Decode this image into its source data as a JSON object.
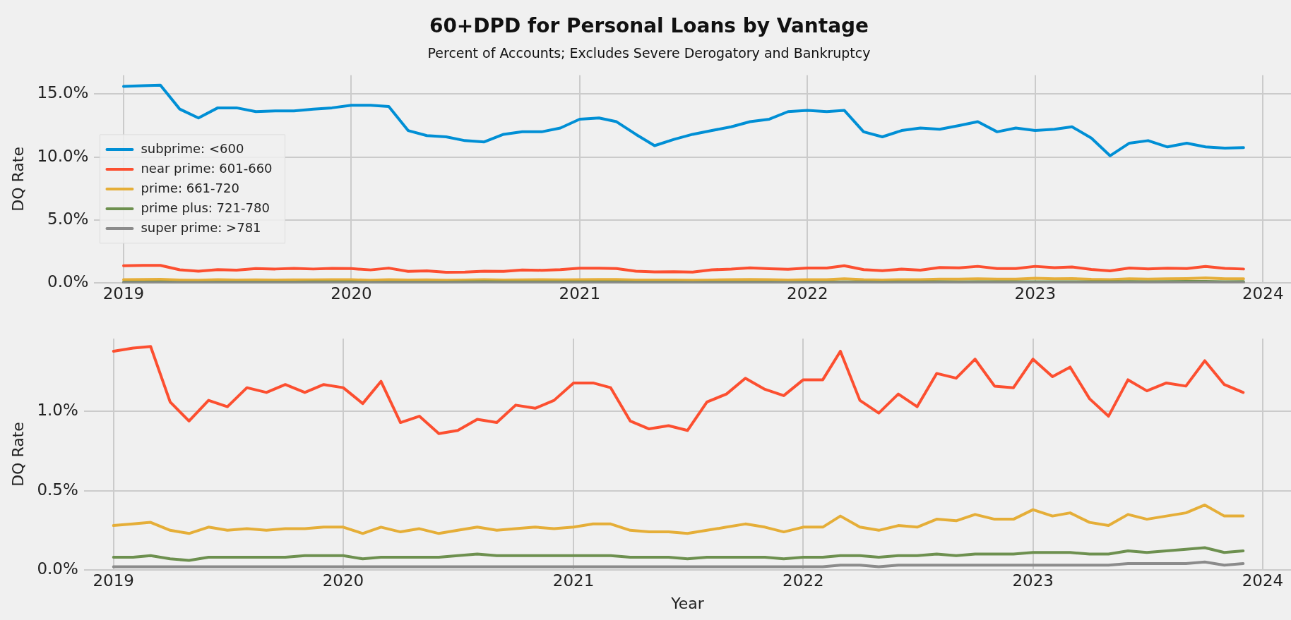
{
  "chart_data": [
    {
      "type": "line",
      "title": "60+DPD for Personal Loans by Vantage",
      "subtitle": "Percent of Accounts; Excludes Severe Derogatory and Bankruptcy",
      "ylabel": "DQ Rate",
      "x": [
        "2019-01",
        "2019-02",
        "2019-03",
        "2019-04",
        "2019-05",
        "2019-06",
        "2019-07",
        "2019-08",
        "2019-09",
        "2019-10",
        "2019-11",
        "2019-12",
        "2020-01",
        "2020-02",
        "2020-03",
        "2020-04",
        "2020-05",
        "2020-06",
        "2020-07",
        "2020-08",
        "2020-09",
        "2020-10",
        "2020-11",
        "2020-12",
        "2021-01",
        "2021-02",
        "2021-03",
        "2021-04",
        "2021-05",
        "2021-06",
        "2021-07",
        "2021-08",
        "2021-09",
        "2021-10",
        "2021-11",
        "2021-12",
        "2022-01",
        "2022-02",
        "2022-03",
        "2022-04",
        "2022-05",
        "2022-06",
        "2022-07",
        "2022-08",
        "2022-09",
        "2022-10",
        "2022-11",
        "2022-12",
        "2023-01",
        "2023-02",
        "2023-03",
        "2023-04",
        "2023-05",
        "2023-06",
        "2023-07",
        "2023-08",
        "2023-09",
        "2023-10",
        "2023-11",
        "2023-12"
      ],
      "series": [
        {
          "name": "subprime: <600",
          "color": "#008fd5",
          "values": [
            15.6,
            15.65,
            15.7,
            13.8,
            13.1,
            13.9,
            13.9,
            13.6,
            13.65,
            13.65,
            13.8,
            13.9,
            14.1,
            14.1,
            14.0,
            12.1,
            11.7,
            11.6,
            11.3,
            11.2,
            11.8,
            12.0,
            12.0,
            12.3,
            13.0,
            13.1,
            12.8,
            11.8,
            10.9,
            11.4,
            11.8,
            12.1,
            12.4,
            12.8,
            13.0,
            13.6,
            13.7,
            13.6,
            13.7,
            12.0,
            11.6,
            12.1,
            12.3,
            12.2,
            12.5,
            12.8,
            12.0,
            12.3,
            12.1,
            12.2,
            12.4,
            11.5,
            10.1,
            11.1,
            11.3,
            10.8,
            11.1,
            10.8,
            10.7,
            10.75
          ]
        },
        {
          "name": "near prime: 601-660",
          "color": "#fc4f30",
          "values": [
            1.38,
            1.4,
            1.41,
            1.06,
            0.94,
            1.07,
            1.03,
            1.15,
            1.12,
            1.17,
            1.12,
            1.17,
            1.15,
            1.05,
            1.19,
            0.93,
            0.97,
            0.86,
            0.88,
            0.95,
            0.93,
            1.04,
            1.02,
            1.07,
            1.18,
            1.18,
            1.15,
            0.94,
            0.89,
            0.91,
            0.88,
            1.06,
            1.11,
            1.21,
            1.14,
            1.1,
            1.2,
            1.2,
            1.38,
            1.07,
            0.99,
            1.11,
            1.03,
            1.24,
            1.21,
            1.33,
            1.16,
            1.15,
            1.33,
            1.22,
            1.28,
            1.08,
            0.97,
            1.2,
            1.13,
            1.18,
            1.16,
            1.32,
            1.17,
            1.12
          ]
        },
        {
          "name": "prime: 661-720",
          "color": "#e5ae38",
          "values": [
            0.28,
            0.29,
            0.3,
            0.25,
            0.23,
            0.27,
            0.25,
            0.26,
            0.25,
            0.26,
            0.26,
            0.27,
            0.27,
            0.23,
            0.27,
            0.24,
            0.26,
            0.23,
            0.25,
            0.27,
            0.25,
            0.26,
            0.27,
            0.26,
            0.27,
            0.29,
            0.29,
            0.25,
            0.24,
            0.24,
            0.23,
            0.25,
            0.27,
            0.29,
            0.27,
            0.24,
            0.27,
            0.27,
            0.34,
            0.27,
            0.25,
            0.28,
            0.27,
            0.32,
            0.31,
            0.35,
            0.32,
            0.32,
            0.38,
            0.34,
            0.36,
            0.3,
            0.28,
            0.35,
            0.32,
            0.34,
            0.36,
            0.41,
            0.34,
            0.34
          ]
        },
        {
          "name": "prime plus: 721-780",
          "color": "#6d904f",
          "values": [
            0.08,
            0.08,
            0.09,
            0.07,
            0.06,
            0.08,
            0.08,
            0.08,
            0.08,
            0.08,
            0.09,
            0.09,
            0.09,
            0.07,
            0.08,
            0.08,
            0.08,
            0.08,
            0.09,
            0.1,
            0.09,
            0.09,
            0.09,
            0.09,
            0.09,
            0.09,
            0.09,
            0.08,
            0.08,
            0.08,
            0.07,
            0.08,
            0.08,
            0.08,
            0.08,
            0.07,
            0.08,
            0.08,
            0.09,
            0.09,
            0.08,
            0.09,
            0.09,
            0.1,
            0.09,
            0.1,
            0.1,
            0.1,
            0.11,
            0.11,
            0.11,
            0.1,
            0.1,
            0.12,
            0.11,
            0.12,
            0.13,
            0.14,
            0.11,
            0.12
          ]
        },
        {
          "name": "super prime: >781",
          "color": "#8b8b8b",
          "values": [
            0.02,
            0.02,
            0.02,
            0.02,
            0.02,
            0.02,
            0.02,
            0.02,
            0.02,
            0.02,
            0.02,
            0.02,
            0.02,
            0.02,
            0.02,
            0.02,
            0.02,
            0.02,
            0.02,
            0.02,
            0.02,
            0.02,
            0.02,
            0.02,
            0.02,
            0.02,
            0.02,
            0.02,
            0.02,
            0.02,
            0.02,
            0.02,
            0.02,
            0.02,
            0.02,
            0.02,
            0.02,
            0.02,
            0.03,
            0.03,
            0.02,
            0.03,
            0.03,
            0.03,
            0.03,
            0.03,
            0.03,
            0.03,
            0.03,
            0.03,
            0.03,
            0.03,
            0.03,
            0.04,
            0.04,
            0.04,
            0.04,
            0.05,
            0.03,
            0.04
          ]
        }
      ],
      "xlim": [
        "2018-11-15",
        "2024-02-15"
      ],
      "xticks": [
        "2019",
        "2020",
        "2021",
        "2022",
        "2023",
        "2024"
      ],
      "ylim": [
        0,
        16.5
      ],
      "yticks": [
        {
          "value": 0,
          "label": "0.0%"
        },
        {
          "value": 5,
          "label": "5.0%"
        },
        {
          "value": 10,
          "label": "10.0%"
        },
        {
          "value": 15,
          "label": "15.0%"
        }
      ],
      "grid": true,
      "legend": "left"
    },
    {
      "type": "line",
      "xlabel": "Year",
      "ylabel": "DQ Rate",
      "x": [
        "2019-01",
        "2019-02",
        "2019-03",
        "2019-04",
        "2019-05",
        "2019-06",
        "2019-07",
        "2019-08",
        "2019-09",
        "2019-10",
        "2019-11",
        "2019-12",
        "2020-01",
        "2020-02",
        "2020-03",
        "2020-04",
        "2020-05",
        "2020-06",
        "2020-07",
        "2020-08",
        "2020-09",
        "2020-10",
        "2020-11",
        "2020-12",
        "2021-01",
        "2021-02",
        "2021-03",
        "2021-04",
        "2021-05",
        "2021-06",
        "2021-07",
        "2021-08",
        "2021-09",
        "2021-10",
        "2021-11",
        "2021-12",
        "2022-01",
        "2022-02",
        "2022-03",
        "2022-04",
        "2022-05",
        "2022-06",
        "2022-07",
        "2022-08",
        "2022-09",
        "2022-10",
        "2022-11",
        "2022-12",
        "2023-01",
        "2023-02",
        "2023-03",
        "2023-04",
        "2023-05",
        "2023-06",
        "2023-07",
        "2023-08",
        "2023-09",
        "2023-10",
        "2023-11",
        "2023-12"
      ],
      "series": [
        {
          "color": "#fc4f30",
          "values": [
            1.38,
            1.4,
            1.41,
            1.06,
            0.94,
            1.07,
            1.03,
            1.15,
            1.12,
            1.17,
            1.12,
            1.17,
            1.15,
            1.05,
            1.19,
            0.93,
            0.97,
            0.86,
            0.88,
            0.95,
            0.93,
            1.04,
            1.02,
            1.07,
            1.18,
            1.18,
            1.15,
            0.94,
            0.89,
            0.91,
            0.88,
            1.06,
            1.11,
            1.21,
            1.14,
            1.1,
            1.2,
            1.2,
            1.38,
            1.07,
            0.99,
            1.11,
            1.03,
            1.24,
            1.21,
            1.33,
            1.16,
            1.15,
            1.33,
            1.22,
            1.28,
            1.08,
            0.97,
            1.2,
            1.13,
            1.18,
            1.16,
            1.32,
            1.17,
            1.12
          ]
        },
        {
          "color": "#e5ae38",
          "values": [
            0.28,
            0.29,
            0.3,
            0.25,
            0.23,
            0.27,
            0.25,
            0.26,
            0.25,
            0.26,
            0.26,
            0.27,
            0.27,
            0.23,
            0.27,
            0.24,
            0.26,
            0.23,
            0.25,
            0.27,
            0.25,
            0.26,
            0.27,
            0.26,
            0.27,
            0.29,
            0.29,
            0.25,
            0.24,
            0.24,
            0.23,
            0.25,
            0.27,
            0.29,
            0.27,
            0.24,
            0.27,
            0.27,
            0.34,
            0.27,
            0.25,
            0.28,
            0.27,
            0.32,
            0.31,
            0.35,
            0.32,
            0.32,
            0.38,
            0.34,
            0.36,
            0.3,
            0.28,
            0.35,
            0.32,
            0.34,
            0.36,
            0.41,
            0.34,
            0.34
          ]
        },
        {
          "color": "#6d904f",
          "values": [
            0.08,
            0.08,
            0.09,
            0.07,
            0.06,
            0.08,
            0.08,
            0.08,
            0.08,
            0.08,
            0.09,
            0.09,
            0.09,
            0.07,
            0.08,
            0.08,
            0.08,
            0.08,
            0.09,
            0.1,
            0.09,
            0.09,
            0.09,
            0.09,
            0.09,
            0.09,
            0.09,
            0.08,
            0.08,
            0.08,
            0.07,
            0.08,
            0.08,
            0.08,
            0.08,
            0.07,
            0.08,
            0.08,
            0.09,
            0.09,
            0.08,
            0.09,
            0.09,
            0.1,
            0.09,
            0.1,
            0.1,
            0.1,
            0.11,
            0.11,
            0.11,
            0.1,
            0.1,
            0.12,
            0.11,
            0.12,
            0.13,
            0.14,
            0.11,
            0.12
          ]
        },
        {
          "color": "#8b8b8b",
          "values": [
            0.02,
            0.02,
            0.02,
            0.02,
            0.02,
            0.02,
            0.02,
            0.02,
            0.02,
            0.02,
            0.02,
            0.02,
            0.02,
            0.02,
            0.02,
            0.02,
            0.02,
            0.02,
            0.02,
            0.02,
            0.02,
            0.02,
            0.02,
            0.02,
            0.02,
            0.02,
            0.02,
            0.02,
            0.02,
            0.02,
            0.02,
            0.02,
            0.02,
            0.02,
            0.02,
            0.02,
            0.02,
            0.02,
            0.03,
            0.03,
            0.02,
            0.03,
            0.03,
            0.03,
            0.03,
            0.03,
            0.03,
            0.03,
            0.03,
            0.03,
            0.03,
            0.03,
            0.03,
            0.04,
            0.04,
            0.04,
            0.04,
            0.05,
            0.03,
            0.04
          ]
        }
      ],
      "xlim": [
        "2018-11-15",
        "2024-02-15"
      ],
      "xticks": [
        "2019",
        "2020",
        "2021",
        "2022",
        "2023",
        "2024"
      ],
      "ylim": [
        0,
        1.46
      ],
      "yticks": [
        {
          "value": 0,
          "label": "0.0%"
        },
        {
          "value": 0.5,
          "label": "0.5%"
        },
        {
          "value": 1,
          "label": "1.0%"
        }
      ],
      "grid": true
    }
  ]
}
